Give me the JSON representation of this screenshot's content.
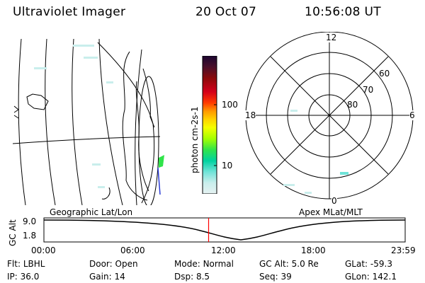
{
  "header": {
    "title": "Ultraviolet Imager",
    "date": "20 Oct 07",
    "time": "10:56:08 UT"
  },
  "colorbar": {
    "unit_label": "photon cm-2s-1",
    "ticks": [
      "100",
      "10"
    ],
    "colors": [
      "#1a0630",
      "#4a0f2a",
      "#8a0a0a",
      "#d4001a",
      "#ff3a00",
      "#ff9800",
      "#ffd200",
      "#f4ff00",
      "#a4ff00",
      "#30e44a",
      "#00d2a0",
      "#6fe3d8",
      "#c9eeec",
      "#e6f2f2"
    ]
  },
  "left_panel": {
    "label": "Geographic Lat/Lon"
  },
  "polar_panel": {
    "label": "Apex MLat/MLT",
    "mlt_labels": {
      "top": "12",
      "left": "18",
      "right": "6",
      "bottom": "0"
    },
    "lat_labels": [
      "60",
      "70",
      "80"
    ]
  },
  "timeline": {
    "ylabel": "GC Alt",
    "yticks": [
      "9.0",
      "1.8"
    ],
    "xticks": [
      "00:00",
      "06:00",
      "12:00",
      "18:00",
      "23:59"
    ],
    "current_time": "10:56",
    "marker_color": "#ff0000"
  },
  "info": {
    "flt_label": "Flt:",
    "flt_value": "LBHL",
    "door_label": "Door:",
    "door_value": "Open",
    "mode_label": "Mode:",
    "mode_value": "Normal",
    "gcalt_label": "GC Alt:",
    "gcalt_value": "5.0 Re",
    "glat_label": "GLat:",
    "glat_value": "-59.3",
    "ip_label": "IP:",
    "ip_value": "36.0",
    "gain_label": "Gain:",
    "gain_value": "14",
    "dsp_label": "Dsp:",
    "dsp_value": "8.5",
    "seq_label": "Seq:",
    "seq_value": "39",
    "glon_label": "GLon:",
    "glon_value": "142.1"
  }
}
